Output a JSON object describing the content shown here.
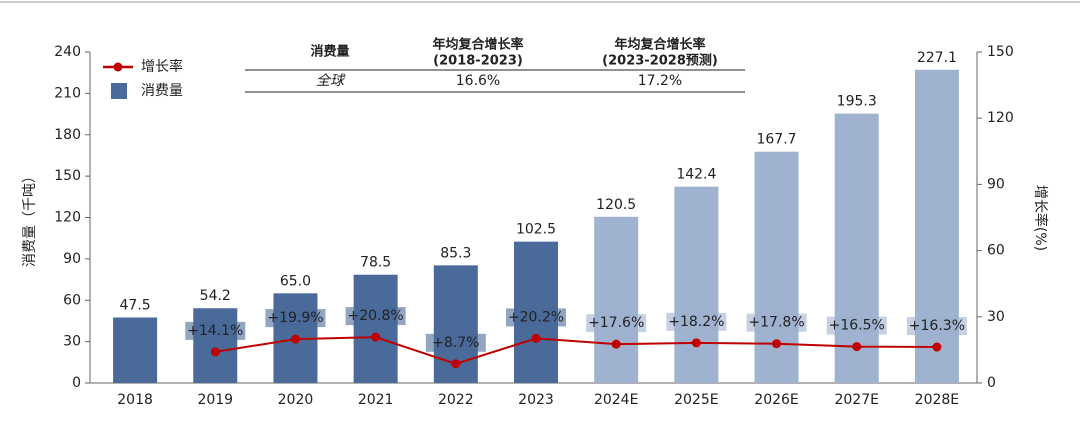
{
  "chart_data": {
    "type": "bar_line",
    "categories": [
      "2018",
      "2019",
      "2020",
      "2021",
      "2022",
      "2023",
      "2024E",
      "2025E",
      "2026E",
      "2027E",
      "2028E"
    ],
    "series": [
      {
        "name": "消费量",
        "type": "bar",
        "color": "#4a6a9a",
        "colors": [
          "#4a6a9a",
          "#4a6a9a",
          "#4a6a9a",
          "#4a6a9a",
          "#4a6a9a",
          "#4a6a9a",
          "#9fb2cf",
          "#9fb2cf",
          "#9fb2cf",
          "#9fb2cf",
          "#9fb2cf"
        ],
        "values": [
          47.5,
          54.2,
          65.0,
          78.5,
          85.3,
          102.5,
          120.5,
          142.4,
          167.7,
          195.3,
          227.1
        ],
        "value_labels": [
          "47.5",
          "54.2",
          "65.0",
          "78.5",
          "85.3",
          "102.5",
          "120.5",
          "142.4",
          "167.7",
          "195.3",
          "227.1"
        ]
      },
      {
        "name": "增长率",
        "type": "line",
        "axis": "y2",
        "color": "#c00000",
        "values": [
          null,
          14.1,
          19.9,
          20.8,
          8.7,
          20.2,
          17.6,
          18.2,
          17.8,
          16.5,
          16.3
        ],
        "value_labels": [
          null,
          "+14.1%",
          "+19.9%",
          "+20.8%",
          "+8.7%",
          "+20.2%",
          "+17.6%",
          "+18.2%",
          "+17.8%",
          "+16.5%",
          "+16.3%"
        ]
      }
    ],
    "ylabel": "消费量（千吨）",
    "y2label": "增长率(%)",
    "ylim": [
      0,
      240
    ],
    "yticks": [
      0,
      30,
      60,
      90,
      120,
      150,
      180,
      210,
      240
    ],
    "y2lim": [
      0,
      150
    ],
    "y2ticks": [
      0,
      30,
      60,
      90,
      120,
      150
    ],
    "legend": "upper left"
  },
  "table": {
    "header": [
      [
        "消费量"
      ],
      [
        "年均复合增长率",
        "(2018-2023)"
      ],
      [
        "年均复合增长率",
        "(2023-2028预测)"
      ]
    ],
    "rows": [
      [
        "全球",
        "16.6%",
        "17.2%"
      ]
    ]
  }
}
